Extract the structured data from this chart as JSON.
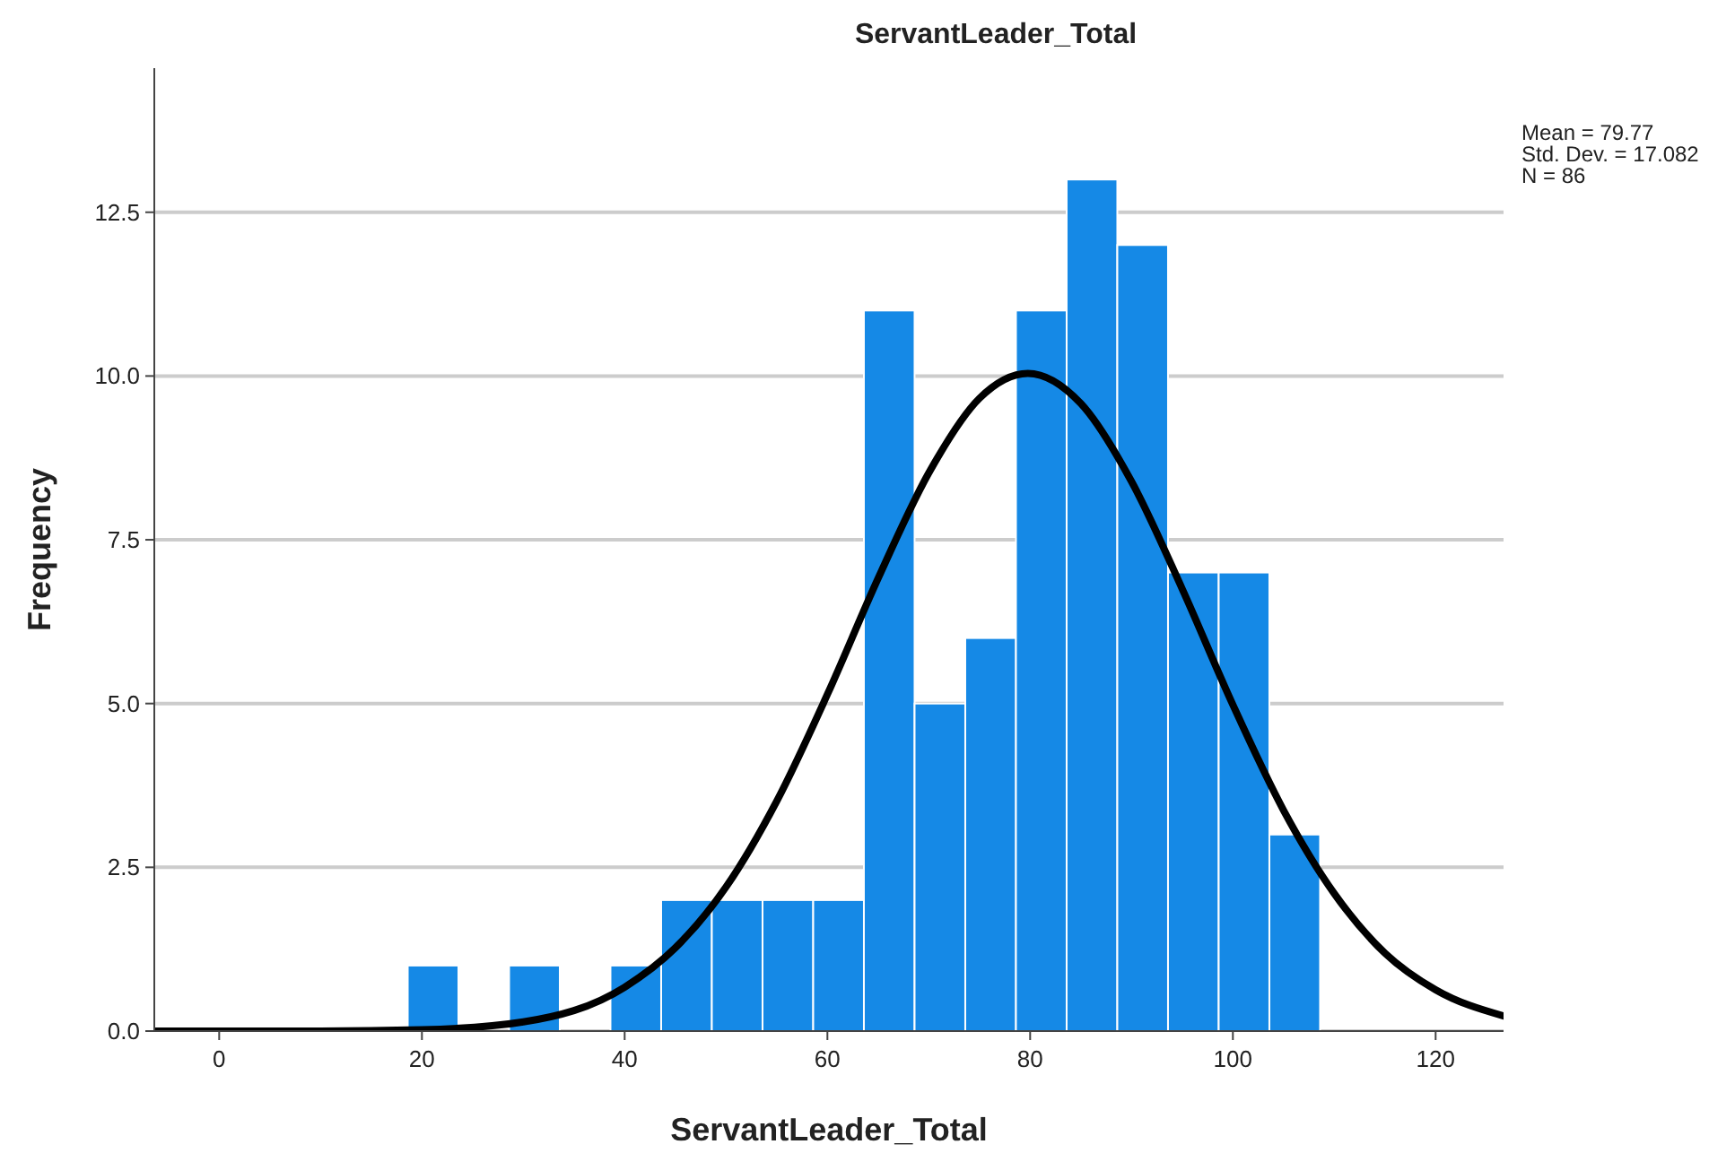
{
  "chart_data": {
    "type": "histogram",
    "title": "ServantLeader_Total",
    "xlabel": "ServantLeader_Total",
    "ylabel": "Frequency",
    "bins": [
      18.6,
      23.6,
      28.6,
      33.6,
      38.6,
      43.6,
      48.6,
      53.6,
      58.6,
      63.6,
      68.6,
      73.6,
      78.6,
      83.6,
      88.6,
      93.6,
      98.6,
      103.6,
      108.6
    ],
    "values": [
      1,
      0,
      1,
      0,
      1,
      2,
      2,
      2,
      2,
      11,
      5,
      6,
      11,
      13,
      12,
      7,
      7,
      3
    ],
    "color": "#1589e6",
    "series": [
      {
        "type": "line",
        "color": "#000000",
        "x": [
          -6.4,
          10,
          20,
          30,
          40,
          45,
          50,
          55,
          60,
          65,
          70,
          75,
          79.77,
          85,
          90,
          95,
          100,
          105,
          110,
          115,
          120,
          126.7
        ],
        "values": [
          0,
          0,
          0.02,
          0.14,
          0.67,
          1.27,
          2.2,
          3.51,
          5.14,
          6.91,
          8.52,
          9.66,
          10.04,
          9.58,
          8.39,
          6.75,
          4.98,
          3.37,
          2.1,
          1.19,
          0.63,
          0.23
        ]
      }
    ],
    "xlim": [
      -6.4,
      126.7
    ],
    "xticks": [
      0,
      20,
      40,
      60,
      80,
      100,
      120
    ],
    "ylim": [
      0,
      14.7
    ],
    "yticks": [
      {
        "value": 0,
        "label": "0.0"
      },
      {
        "value": 2.5,
        "label": "2.5"
      },
      {
        "value": 5,
        "label": "5.0"
      },
      {
        "value": 7.5,
        "label": "7.5"
      },
      {
        "value": 10,
        "label": "10.0"
      },
      {
        "value": 12.5,
        "label": "12.5"
      }
    ],
    "grid": "y",
    "annotations": [
      "Mean = 79.77",
      "Std. Dev. = 17.082",
      "N = 86"
    ]
  }
}
